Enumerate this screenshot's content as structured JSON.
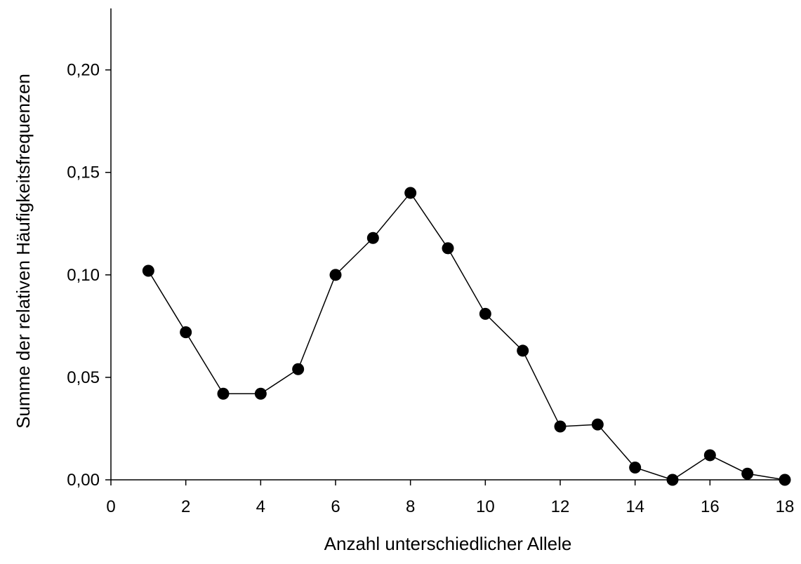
{
  "chart_data": {
    "type": "line",
    "title": "",
    "xlabel": "Anzahl unterschiedlicher Allele",
    "ylabel": "Summe der relativen Häufigkeitsfrequenzen",
    "xlim": [
      0,
      18
    ],
    "ylim": [
      0,
      0.23
    ],
    "x_ticks": [
      0,
      2,
      4,
      6,
      8,
      10,
      12,
      14,
      16,
      18
    ],
    "x_tick_labels": [
      "0",
      "2",
      "4",
      "6",
      "8",
      "10",
      "12",
      "14",
      "16",
      "18"
    ],
    "y_ticks": [
      0,
      0.05,
      0.1,
      0.15,
      0.2
    ],
    "y_tick_labels": [
      "0,00",
      "0,05",
      "0,10",
      "0,15",
      "0,20"
    ],
    "grid": false,
    "legend": "none",
    "series": [
      {
        "x": [
          1,
          2,
          3,
          4,
          5,
          6,
          7,
          8,
          9,
          10,
          11,
          12,
          13,
          14,
          15,
          16,
          17,
          18
        ],
        "y": [
          0.102,
          0.072,
          0.042,
          0.042,
          0.054,
          0.1,
          0.118,
          0.14,
          0.113,
          0.081,
          0.063,
          0.026,
          0.027,
          0.006,
          0.0,
          0.012,
          0.003,
          0.0
        ],
        "color": "#000000",
        "marker": "circle-filled"
      }
    ]
  }
}
